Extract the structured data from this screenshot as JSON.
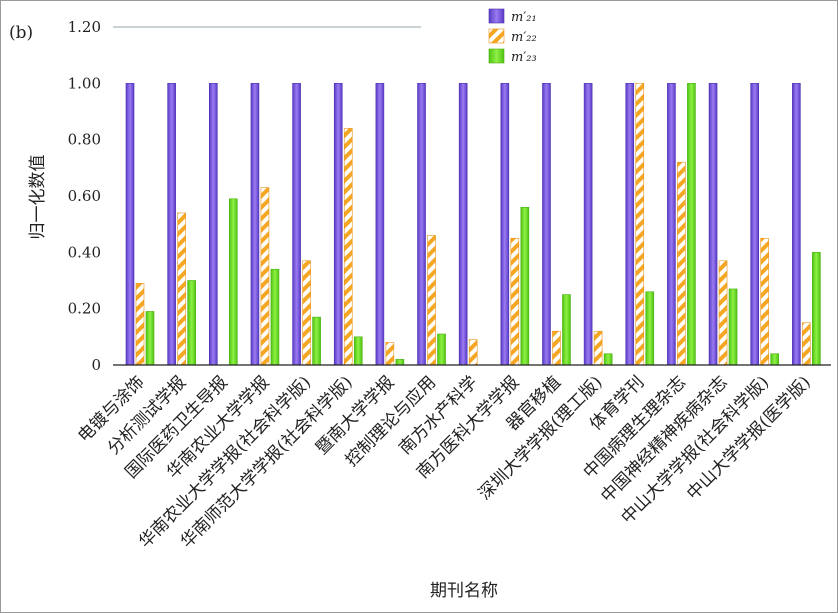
{
  "panel_label": "(b)",
  "chart_data": {
    "type": "bar",
    "xlabel": "期刊名称",
    "ylabel": "归一化数值",
    "ylim": [
      0,
      1.2
    ],
    "yticks": [
      "0",
      "0.20",
      "0.40",
      "0.60",
      "0.80",
      "1.00",
      "1.20"
    ],
    "legend_position": "top-right",
    "grid": false,
    "categories": [
      "电镀与涂饰",
      "分析测试学报",
      "国际医药卫生导报",
      "华南农业大学学报",
      "华南农业大学学报(社会科学版)",
      "华南师范大学学报(社会科学版)",
      "暨南大学学报",
      "控制理论与应用",
      "南方水产科学",
      "南方医科大学学报",
      "器官移植",
      "深圳大学学报(理工版)",
      "体育学刊",
      "中国病理生理杂志",
      "中国神经精神疾病杂志",
      "中山大学学报(社会科学版)",
      "中山大学学报(医学版)"
    ],
    "series": [
      {
        "name": "m′₂₁",
        "color": "#7b57e0",
        "values": [
          1.0,
          1.0,
          1.0,
          1.0,
          1.0,
          1.0,
          1.0,
          1.0,
          1.0,
          1.0,
          1.0,
          1.0,
          1.0,
          1.0,
          1.0,
          1.0,
          1.0
        ]
      },
      {
        "name": "m′₂₂",
        "color": "#f5a623",
        "values": [
          0.29,
          0.54,
          0.0,
          0.63,
          0.37,
          0.84,
          0.08,
          0.46,
          0.09,
          0.45,
          0.12,
          0.12,
          1.0,
          0.72,
          0.37,
          0.45,
          0.15
        ]
      },
      {
        "name": "m′₂₃",
        "color": "#66e01f",
        "values": [
          0.19,
          0.3,
          0.59,
          0.34,
          0.17,
          0.1,
          0.02,
          0.11,
          0.0,
          0.56,
          0.25,
          0.04,
          0.26,
          1.0,
          0.27,
          0.04,
          0.4
        ]
      }
    ]
  }
}
